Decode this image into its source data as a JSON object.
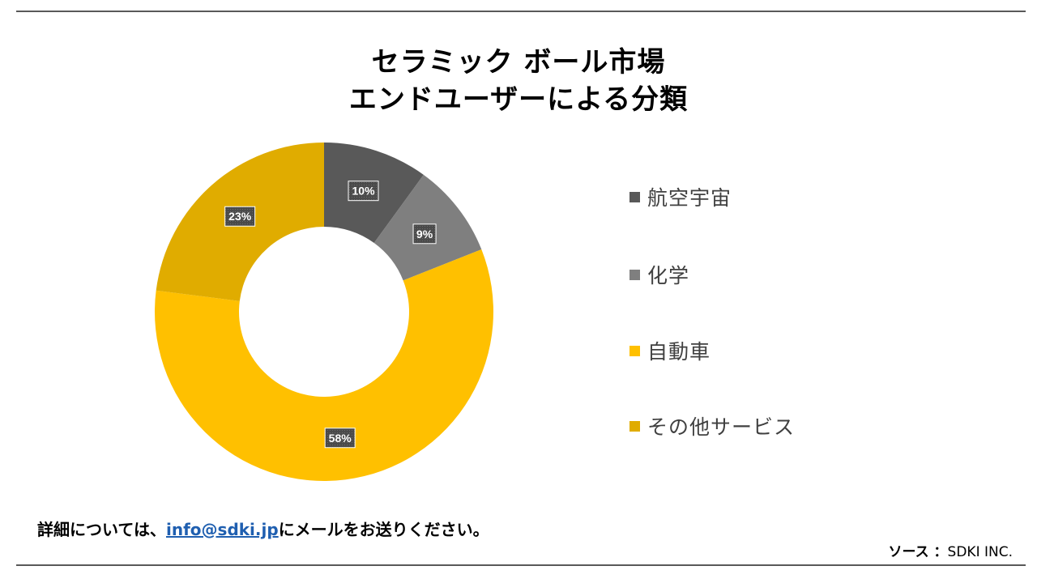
{
  "title": {
    "line1": "セラミック ボール市場",
    "line2": "エンドユーザーによる分類"
  },
  "chart_data": {
    "type": "donut",
    "categories": [
      "航空宇宙",
      "化学",
      "自動車",
      "その他サービス"
    ],
    "values": [
      10,
      9,
      58,
      23
    ],
    "data_labels": [
      "10%",
      "9%",
      "58%",
      "23%"
    ],
    "colors": [
      "#595959",
      "#7f7f7f",
      "#ffc000",
      "#e0ac00"
    ],
    "legend_position": "right",
    "grid": false
  },
  "legend": {
    "items": [
      {
        "label": "航空宇宙",
        "color": "#595959"
      },
      {
        "label": "化学",
        "color": "#7f7f7f"
      },
      {
        "label": "自動車",
        "color": "#ffc000"
      },
      {
        "label": "その他サービス",
        "color": "#e0ac00"
      }
    ]
  },
  "footer": {
    "prefix": "詳細については、",
    "email": "info@sdki.jp",
    "suffix": "にメールをお送りください。"
  },
  "source": {
    "label": "ソース ：",
    "value": "SDKI INC."
  }
}
